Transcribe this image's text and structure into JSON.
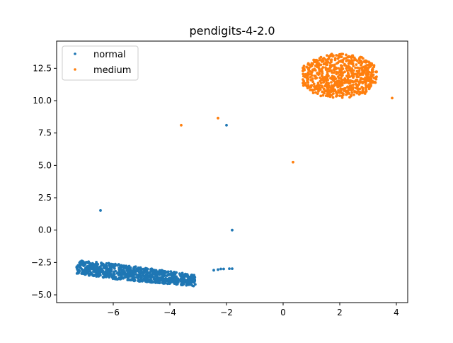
{
  "chart_data": {
    "type": "scatter",
    "title": "pendigits-4-2.0",
    "xlabel": "",
    "ylabel": "",
    "xlim": [
      -8.0,
      4.4
    ],
    "ylim": [
      -5.6,
      14.6
    ],
    "xticks": [
      -6,
      -4,
      -2,
      0,
      2,
      4
    ],
    "xtick_labels": [
      "−6",
      "−4",
      "−2",
      "0",
      "2",
      "4"
    ],
    "yticks": [
      -5.0,
      -2.5,
      0.0,
      2.5,
      5.0,
      7.5,
      10.0,
      12.5
    ],
    "ytick_labels": [
      "−5.0",
      "−2.5",
      "0.0",
      "2.5",
      "5.0",
      "7.5",
      "10.0",
      "12.5"
    ],
    "grid": false,
    "legend_position": "top-left",
    "series": [
      {
        "name": "normal",
        "color": "#1f77b4",
        "clusters": [
          {
            "x_range": [
              -7.3,
              -3.1
            ],
            "y_range": [
              -4.6,
              -2.2
            ],
            "count": 900,
            "note": "dense elongated cluster"
          }
        ],
        "points": [
          {
            "x": -6.45,
            "y": 1.52
          },
          {
            "x": -2.0,
            "y": 8.1
          },
          {
            "x": -1.8,
            "y": 0.0
          },
          {
            "x": -2.45,
            "y": -3.1
          },
          {
            "x": -2.3,
            "y": -3.05
          },
          {
            "x": -2.2,
            "y": -3.0
          },
          {
            "x": -2.1,
            "y": -3.0
          },
          {
            "x": -1.9,
            "y": -2.98
          },
          {
            "x": -1.8,
            "y": -2.98
          }
        ]
      },
      {
        "name": "medium",
        "color": "#ff7f0e",
        "clusters": [
          {
            "x_range": [
              0.7,
              3.3
            ],
            "y_range": [
              10.2,
              13.6
            ],
            "count": 700,
            "note": "dense cluster"
          }
        ],
        "points": [
          {
            "x": -3.6,
            "y": 8.1
          },
          {
            "x": -2.3,
            "y": 8.65
          },
          {
            "x": 0.35,
            "y": 5.25
          },
          {
            "x": 3.85,
            "y": 10.2
          }
        ]
      }
    ]
  }
}
